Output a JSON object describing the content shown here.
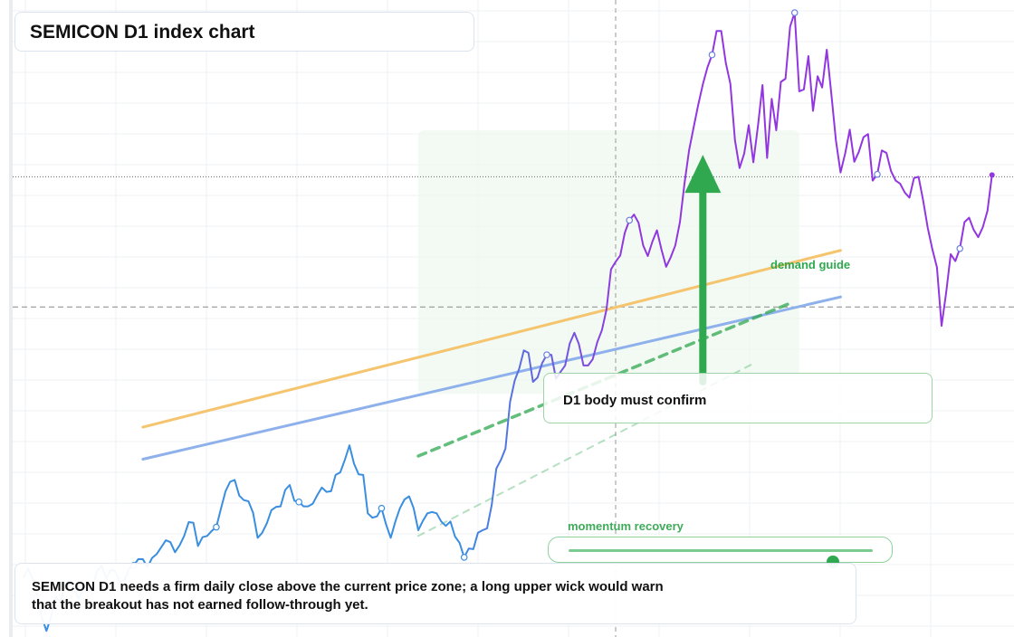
{
  "title": "SEMICON D1 index chart",
  "note": "SEMICON D1 needs a firm daily close above the current price zone; a long upper wick would warn that the breakout has not earned follow-through yet.",
  "confirm_label": "D1 body must confirm",
  "demand_label": "demand guide",
  "momentum": {
    "label": "momentum recovery",
    "level": 0.87
  },
  "colors": {
    "price_early": "#3a8ee0",
    "price_late": "#9237e0",
    "orange_line": "#f5c46e",
    "blue_line": "#8eb1ec",
    "green": "#2fa84f",
    "zone": "#eef8ee"
  },
  "chart_data": {
    "type": "line",
    "title": "SEMICON D1 index chart",
    "xlabel": "",
    "ylabel": "",
    "ylim": [
      0,
      100
    ],
    "xlim": [
      0,
      215
    ],
    "grid": true,
    "y_reference_dotted": 72.6,
    "y_reference_dashed": 51.9,
    "x_reference_dashed": 129,
    "series": [
      {
        "values": [
          8.8,
          10.3,
          8.6,
          6.1,
          2.5,
          0.4,
          2.6,
          5.8,
          5.0,
          7.7,
          8.4,
          7.2,
          5.5,
          6.9,
          6.6,
          7.7,
          9.8,
          10.8,
          8.7,
          10.1,
          9.9,
          8.1,
          8.5,
          10.3,
          10.8,
          11.8,
          11.8,
          10.5,
          12.0,
          12.6,
          13.7,
          14.8,
          14.5,
          12.9,
          14.0,
          15.5,
          17.7,
          17.6,
          13.9,
          15.3,
          15.5,
          16.3,
          16.9,
          19.8,
          22.6,
          24.1,
          24.4,
          21.9,
          21.2,
          21.0,
          19.2,
          15.2,
          16.0,
          17.5,
          19.6,
          20.1,
          20.2,
          22.8,
          23.6,
          21.1,
          20.9,
          20.2,
          20.2,
          20.6,
          22.0,
          23.2,
          22.5,
          22.6,
          25.2,
          25.6,
          27.6,
          29.9,
          27.0,
          25.3,
          25.2,
          19.1,
          18.4,
          18.6,
          19.9,
          17.3,
          15.2,
          17.8,
          19.9,
          21.3,
          21.8,
          19.9,
          16.4,
          17.9,
          19.1,
          19.3,
          19.1,
          17.8,
          17.1,
          17.8,
          15.4,
          14.4,
          12.1,
          13.5,
          13.4,
          16.0,
          16.4,
          16.7,
          20.4,
          26.2,
          27.6,
          29.4,
          36.8,
          40.2,
          42.1,
          45.0,
          44.6,
          40.0,
          40.7,
          43.0,
          44.3,
          44.3,
          40.5,
          41.6,
          42.6,
          46.1,
          47.8,
          46.0,
          42.6,
          42.6,
          43.6,
          46.3,
          48.2,
          51.5,
          57.9,
          59.1,
          60.1,
          63.7,
          65.7,
          66.6,
          65.3,
          61.7,
          60.0,
          62.3,
          64.1,
          61.0,
          58.3,
          59.8,
          61.7,
          65.4,
          71.5,
          76.8,
          80.5,
          84.1,
          87.3,
          90.0,
          92.0,
          95.8,
          95.8,
          90.7,
          87.4,
          78.4,
          74.0,
          76.3,
          80.8,
          74.9,
          80.7,
          87.2,
          75.6,
          85.0,
          80.0,
          87.7,
          88.2,
          96.5,
          98.7,
          86.2,
          86.5,
          91.8,
          83.1,
          88.6,
          86.8,
          92.8,
          85.7,
          78.4,
          73.3,
          76.3,
          80.1,
          75.0,
          76.6,
          78.9,
          79.4,
          72.0,
          73.0,
          76.8,
          76.4,
          73.5,
          72.0,
          71.5,
          70.1,
          69.3,
          72.4,
          72.6,
          68.8,
          64.5,
          61.1,
          58.2,
          48.9,
          54.1,
          60.3,
          59.2,
          61.2,
          65.4,
          66.1,
          64.2,
          63.0,
          64.6,
          67.2,
          72.9
        ]
      }
    ],
    "reference_lines": [
      {
        "x": [
          26,
          178
        ],
        "y": [
          32.8,
          60.9
        ]
      },
      {
        "x": [
          26,
          178
        ],
        "y": [
          27.7,
          53.5
        ]
      },
      {
        "x": [
          86,
          167
        ],
        "y": [
          28.2,
          52.5
        ]
      },
      {
        "x": [
          86,
          159
        ],
        "y": [
          15.5,
          42.9
        ]
      }
    ],
    "demand_zone": {
      "x": [
        86,
        169
      ],
      "y": [
        38.1,
        80.0
      ]
    },
    "arrow": {
      "x": 148,
      "y": [
        40.0,
        76.1
      ]
    }
  }
}
